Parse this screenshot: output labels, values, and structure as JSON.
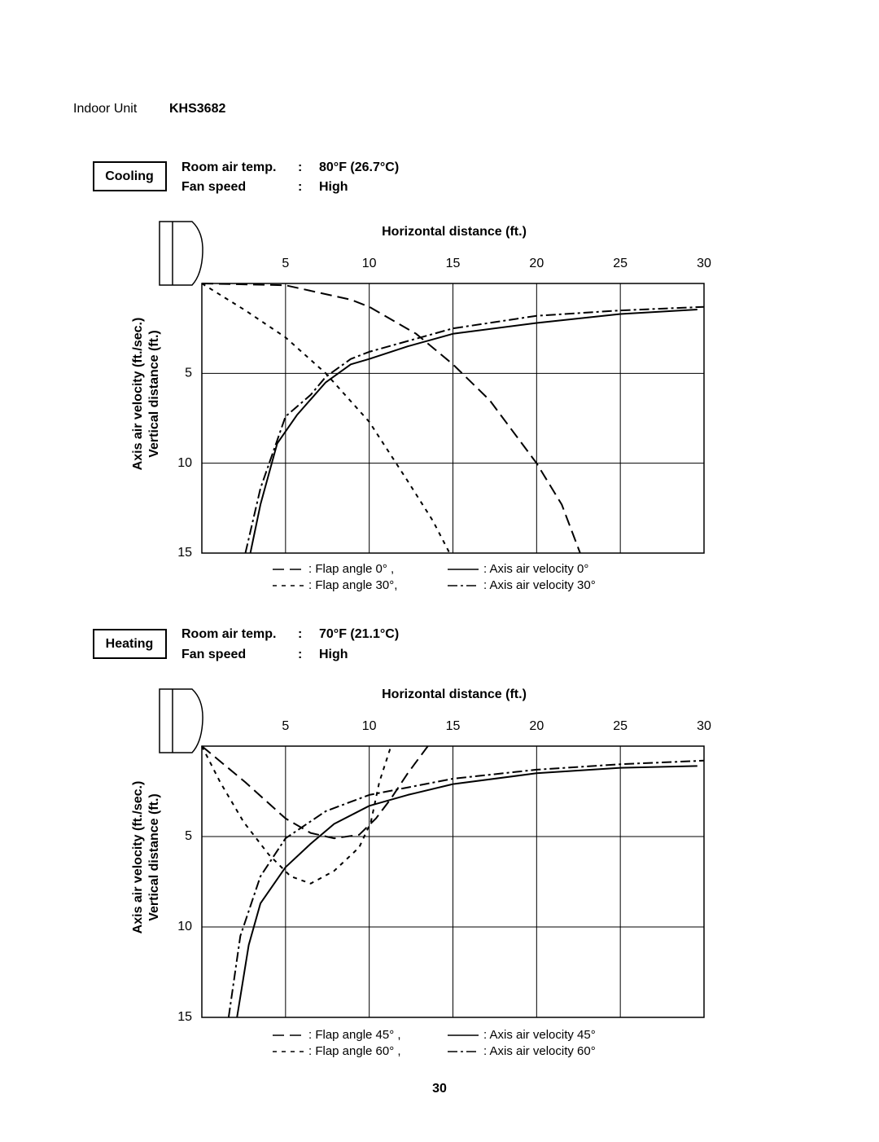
{
  "header": {
    "label": "Indoor Unit",
    "model": "KHS3682"
  },
  "sections": [
    {
      "mode": "Cooling",
      "conditions": [
        {
          "label": "Room air temp.",
          "sep": ":",
          "value": "80°F (26.7°C)"
        },
        {
          "label": "Fan speed",
          "sep": ":",
          "value": "High"
        }
      ]
    },
    {
      "mode": "Heating",
      "conditions": [
        {
          "label": "Room air temp.",
          "sep": ":",
          "value": "70°F (21.1°C)"
        },
        {
          "label": "Fan speed",
          "sep": ":",
          "value": "High"
        }
      ]
    }
  ],
  "chart_data": [
    {
      "type": "line",
      "x_label": "Horizontal distance (ft.)",
      "y_label": [
        "Axis air velocity (ft./sec.)",
        "Vertical distance (ft.)"
      ],
      "xlim": [
        0,
        30
      ],
      "xticks": [
        5,
        10,
        15,
        20,
        25,
        30
      ],
      "ylim": [
        0,
        15
      ],
      "yticks": [
        5,
        10,
        15
      ],
      "y_reversed": true,
      "grid": true,
      "series": [
        {
          "name": ": Flap angle 0° ,",
          "color": "#000000",
          "style": "long-dash",
          "x": [
            0,
            5,
            8.9,
            10,
            12.8,
            15,
            17.2,
            20,
            21.5,
            22.6
          ],
          "values": [
            0,
            0.1,
            0.9,
            1.3,
            2.8,
            4.5,
            6.5,
            10,
            12.3,
            15
          ]
        },
        {
          "name": ": Flap angle 30°,",
          "color": "#000000",
          "style": "dash",
          "x": [
            0,
            2.6,
            5,
            7.4,
            10,
            12.3,
            13.8,
            14.8
          ],
          "values": [
            0,
            1.5,
            3,
            5,
            7.7,
            11,
            13.2,
            15
          ]
        },
        {
          "name": ": Axis air velocity 0°",
          "color": "#000000",
          "style": "solid",
          "x": [
            2.9,
            3.5,
            4.5,
            5.7,
            7.4,
            8.9,
            10,
            12.3,
            15,
            20,
            25,
            29.6
          ],
          "values": [
            15,
            12.3,
            8.9,
            7.3,
            5.5,
            4.5,
            4.2,
            3.5,
            2.8,
            2.2,
            1.7,
            1.45
          ]
        },
        {
          "name": ": Axis air velocity 30°",
          "color": "#000000",
          "style": "dash-dot",
          "x": [
            2.6,
            3.5,
            5,
            6.5,
            7.4,
            8.9,
            10,
            15,
            20,
            25,
            30
          ],
          "values": [
            15,
            11.4,
            7.4,
            6.2,
            5.2,
            4.2,
            3.8,
            2.5,
            1.8,
            1.5,
            1.3
          ]
        }
      ]
    },
    {
      "type": "line",
      "x_label": "Horizontal distance (ft.)",
      "y_label": [
        "Axis air velocity (ft./sec.)",
        "Vertical distance (ft.)"
      ],
      "xlim": [
        0,
        30
      ],
      "xticks": [
        5,
        10,
        15,
        20,
        25,
        30
      ],
      "ylim": [
        0,
        15
      ],
      "yticks": [
        5,
        10,
        15
      ],
      "y_reversed": true,
      "grid": true,
      "series": [
        {
          "name": ": Flap angle 45° ,",
          "color": "#000000",
          "style": "long-dash",
          "x": [
            0,
            2.6,
            5,
            6.5,
            7.9,
            9.4,
            10.4,
            11.3,
            12.3,
            13.5
          ],
          "values": [
            0,
            2,
            4,
            4.8,
            5.1,
            4.9,
            4,
            2.9,
            1.5,
            0
          ]
        },
        {
          "name": ": Flap angle 60° ,",
          "color": "#000000",
          "style": "dash",
          "x": [
            0,
            1.1,
            2.5,
            4,
            5.3,
            6.5,
            7.9,
            9.4,
            10.1,
            10.6,
            11.3
          ],
          "values": [
            0,
            2,
            4.2,
            6,
            7.2,
            7.6,
            6.9,
            5.6,
            4.2,
            2,
            0
          ]
        },
        {
          "name": ": Axis air velocity 45°",
          "color": "#000000",
          "style": "solid",
          "x": [
            2.1,
            2.8,
            3.5,
            5,
            6.5,
            7.9,
            10,
            12.3,
            15,
            20,
            25,
            29.6
          ],
          "values": [
            15,
            11,
            8.7,
            6.7,
            5.4,
            4.3,
            3.3,
            2.7,
            2.1,
            1.5,
            1.2,
            1.1
          ]
        },
        {
          "name": ": Axis air velocity 60°",
          "color": "#000000",
          "style": "dash-dot",
          "x": [
            1.6,
            2.3,
            3.5,
            5,
            7.4,
            10,
            15,
            20,
            25,
            30
          ],
          "values": [
            15,
            10.5,
            7.2,
            5.1,
            3.6,
            2.7,
            1.8,
            1.3,
            1,
            0.8
          ]
        }
      ]
    }
  ],
  "footer": {
    "page": "30"
  }
}
